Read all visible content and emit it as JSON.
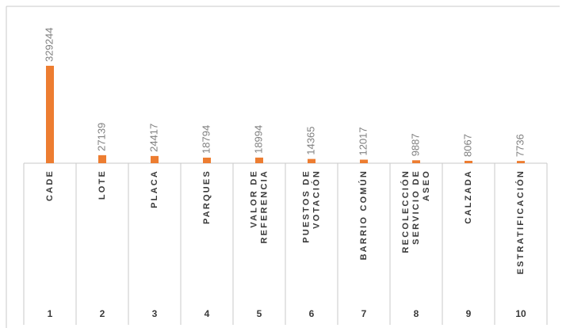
{
  "chart_data": {
    "type": "bar",
    "categories": [
      [
        "CADE"
      ],
      [
        "LOTE"
      ],
      [
        "PLACA"
      ],
      [
        "PARQUES"
      ],
      [
        "VALOR DE",
        "REFERENCIA"
      ],
      [
        "PUESTOS DE",
        "VOTACIÓN"
      ],
      [
        "BARRIO COMÚN"
      ],
      [
        "RECOLECCIÓN",
        "SERVICIO DE",
        "ASEO"
      ],
      [
        "CALZADA"
      ],
      [
        "ESTRATIFICACIÓN"
      ]
    ],
    "ranks": [
      1,
      2,
      3,
      4,
      5,
      6,
      7,
      8,
      9,
      10
    ],
    "values": [
      329244,
      27139,
      24417,
      18794,
      18994,
      14365,
      12017,
      9887,
      8067,
      7736
    ],
    "color": "#ed7d31"
  }
}
